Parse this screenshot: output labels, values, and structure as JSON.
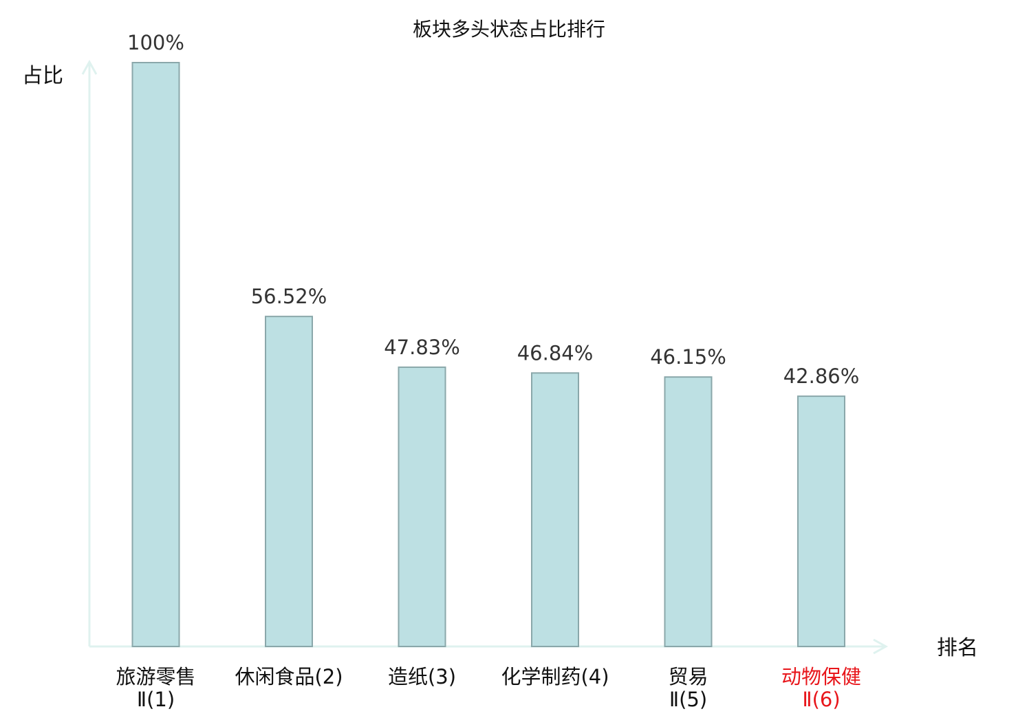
{
  "chart_data": {
    "type": "bar",
    "title": "板块多头状态占比排行",
    "ylabel": "占比",
    "xlabel": "排名",
    "ylim": [
      0,
      100
    ],
    "grid": false,
    "categories": [
      {
        "name": "旅游零售",
        "suffix": "Ⅱ(1)",
        "highlight": false
      },
      {
        "name": "休闲食品",
        "suffix": "(2)",
        "highlight": false
      },
      {
        "name": "造纸",
        "suffix": "(3)",
        "highlight": false
      },
      {
        "name": "化学制药",
        "suffix": "(4)",
        "highlight": false
      },
      {
        "name": "贸易",
        "suffix": "Ⅱ(5)",
        "highlight": false
      },
      {
        "name": "动物保健",
        "suffix": "Ⅱ(6)",
        "highlight": true
      }
    ],
    "values": [
      100,
      56.52,
      47.83,
      46.84,
      46.15,
      42.86
    ],
    "value_labels": [
      "100%",
      "56.52%",
      "47.83%",
      "46.84%",
      "46.15%",
      "42.86%"
    ]
  },
  "colors": {
    "bar_fill": "#bde0e3",
    "bar_stroke": "#8aa7aa",
    "axis": "#dff2ef",
    "text": "#333333",
    "label": "#111111",
    "highlight": "#e8161b"
  }
}
